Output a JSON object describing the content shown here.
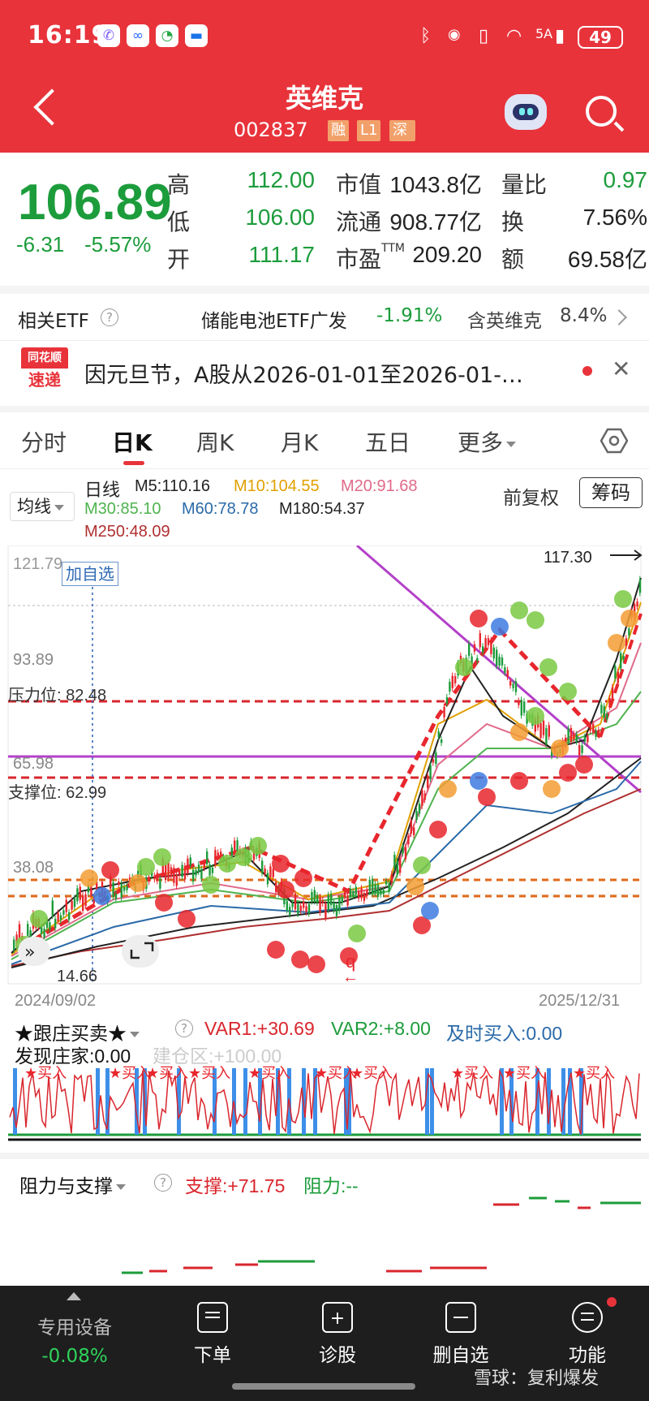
{
  "status_bar": {
    "time": "16:19",
    "battery": "49",
    "network": "5A"
  },
  "header": {
    "title": "英维克",
    "code": "002837",
    "tags": [
      "融",
      "L1",
      "深股"
    ]
  },
  "quote": {
    "price": "106.89",
    "change": "-6.31",
    "change_pct": "-5.57%",
    "high_label": "高",
    "high": "112.00",
    "low_label": "低",
    "low": "106.00",
    "open_label": "开",
    "open": "111.17",
    "mcap_label": "市值",
    "mcap": "1043.8亿",
    "float_label": "流通",
    "float": "908.77亿",
    "pe_label": "市盈",
    "pe_sup": "TTM",
    "pe": "209.20",
    "vol_ratio_label": "量比",
    "vol_ratio": "0.97",
    "turnover_label": "换",
    "turnover": "7.56%",
    "amount_label": "额",
    "amount": "69.58亿"
  },
  "etf": {
    "label": "相关ETF",
    "name": "储能电池ETF广发",
    "change": "-1.91%",
    "holding_label": "含英维克",
    "holding": "8.4%"
  },
  "news": {
    "logo_top": "同花顺",
    "logo_bottom": "速递",
    "text": "因元旦节，A股从2026-01-01至2026-01-…"
  },
  "tabs": [
    "分时",
    "日K",
    "周K",
    "月K",
    "五日",
    "更多"
  ],
  "ma_legend": {
    "selector": "均线",
    "type": "日线",
    "m5": "M5:110.16",
    "m10": "M10:104.55",
    "m20": "M20:91.68",
    "m30": "M30:85.10",
    "m60": "M60:78.78",
    "m180": "M180:54.37",
    "m250": "M250:48.09",
    "adjust": "前复权",
    "chip_button": "筹码"
  },
  "colors": {
    "accent": "#e8333b",
    "down": "#1c9c3b",
    "m5": "#222222",
    "m10": "#e0a000",
    "m20": "#e06a8a",
    "m30": "#4fb34f",
    "m60": "#2a6aa8",
    "m180": "#222222",
    "m250": "#b03030"
  },
  "kline": {
    "add_watch": "加自选",
    "y_top": "121.79",
    "y_mid1": "93.89",
    "y_mid2": "65.98",
    "y_mid3": "38.08",
    "y_low": "14.66",
    "high_marker": "117.30",
    "resistance_label": "压力位: 82.48",
    "support_label": "支撑位: 62.99",
    "date_start": "2024/09/02",
    "date_end": "2025/12/31"
  },
  "indicator1": {
    "name": "★跟庄买卖★",
    "var1": "VAR1:+30.69",
    "var2": "VAR2:+8.00",
    "buy_now": "及时买入:0.00",
    "dealer": "发现庄家:0.00",
    "build_zone": "建仓区:+100.00",
    "signal": "买入"
  },
  "indicator2": {
    "name": "阻力与支撑",
    "support": "支撑:+71.75",
    "resistance": "阻力:--"
  },
  "bottom_nav": {
    "device_label": "专用设备",
    "device_change": "-0.08%",
    "items": [
      "下单",
      "诊股",
      "删自选",
      "功能"
    ]
  },
  "watermark": "雪球：复利爆发"
}
